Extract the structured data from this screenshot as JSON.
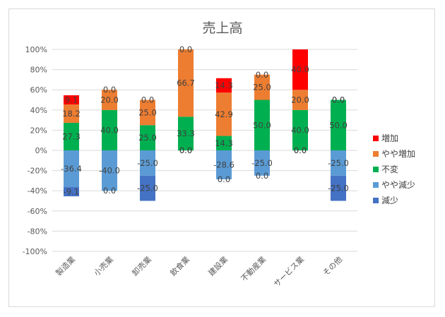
{
  "chart_data": {
    "type": "bar",
    "stacked": true,
    "title": "売上高",
    "xlabel": "",
    "ylabel": "",
    "ylim": [
      -100,
      100
    ],
    "yticks": [
      "100%",
      "80%",
      "60%",
      "40%",
      "20%",
      "0%",
      "-20%",
      "-40%",
      "-60%",
      "-80%",
      "-100%"
    ],
    "categories": [
      "製造業",
      "小売業",
      "卸売業",
      "飲食業",
      "建設業",
      "不動産業",
      "サービス業",
      "その他"
    ],
    "series": [
      {
        "name": "増加",
        "color": "#ff0000",
        "values": [
          9.1,
          0.0,
          0.0,
          0.0,
          14.3,
          0.0,
          40.0,
          0.0
        ]
      },
      {
        "name": "やや増加",
        "color": "#ed7d31",
        "values": [
          18.2,
          20.0,
          25.0,
          66.7,
          42.9,
          25.0,
          20.0,
          0.0
        ]
      },
      {
        "name": "不変",
        "color": "#00b050",
        "values": [
          27.3,
          40.0,
          25.0,
          33.3,
          14.3,
          50.0,
          40.0,
          50.0
        ]
      },
      {
        "name": "やや減少",
        "color": "#5b9bd5",
        "values": [
          -36.4,
          -40.0,
          -25.0,
          0.0,
          -28.6,
          -25.0,
          0.0,
          -25.0
        ]
      },
      {
        "name": "減少",
        "color": "#4472c4",
        "values": [
          -9.1,
          0.0,
          -25.0,
          0.0,
          0.0,
          0.0,
          0.0,
          -25.0
        ]
      }
    ],
    "legend_order": [
      0,
      1,
      2,
      3,
      4
    ],
    "legend_position": "right",
    "grid": true
  }
}
